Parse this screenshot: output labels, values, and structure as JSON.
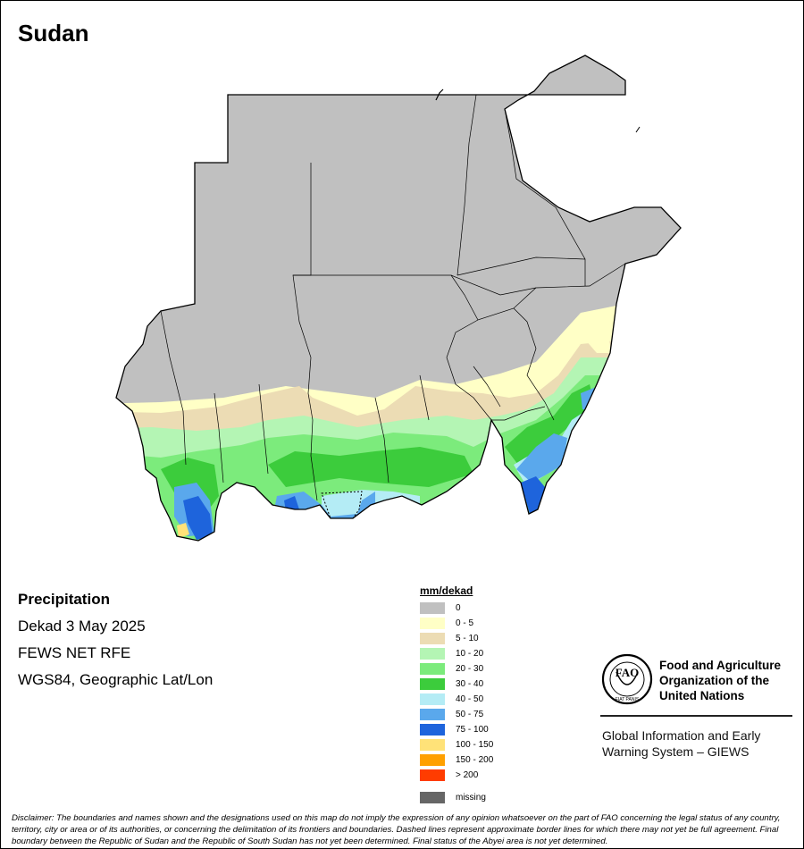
{
  "map": {
    "title": "Sudan",
    "colors": {
      "gray": "#c0c0c0",
      "c0_5": "#ffffc6",
      "c5_10": "#ecdcb4",
      "c10_20": "#b4f5b4",
      "c20_30": "#7ceb7c",
      "c30_40": "#3ccc3c",
      "c40_50": "#b4ecf5",
      "c50_75": "#5aa8ec",
      "c75_100": "#1e64dc",
      "c100_150": "#ffe278",
      "c150_200": "#ffa000",
      "c200": "#ff3c00",
      "missing": "#666666",
      "boundary": "#000000"
    }
  },
  "info": {
    "heading": "Precipitation",
    "dekad": "Dekad 3 May 2025",
    "source": "FEWS NET RFE",
    "projection": "WGS84, Geographic Lat/Lon"
  },
  "legend": {
    "title": "mm/dekad",
    "items": [
      {
        "label": "0",
        "color": "#c0c0c0"
      },
      {
        "label": "0 - 5",
        "color": "#ffffc6"
      },
      {
        "label": "5 - 10",
        "color": "#ecdcb4"
      },
      {
        "label": "10 - 20",
        "color": "#b4f5b4"
      },
      {
        "label": "20 - 30",
        "color": "#7ceb7c"
      },
      {
        "label": "30 - 40",
        "color": "#3ccc3c"
      },
      {
        "label": "40 - 50",
        "color": "#b4ecf5"
      },
      {
        "label": "50 - 75",
        "color": "#5aa8ec"
      },
      {
        "label": "75 - 100",
        "color": "#1e64dc"
      },
      {
        "label": "100 - 150",
        "color": "#ffe278"
      },
      {
        "label": "150 - 200",
        "color": "#ffa000"
      },
      {
        "label": "> 200",
        "color": "#ff3c00"
      }
    ],
    "missing_label": "missing",
    "missing_color": "#666666"
  },
  "logo": {
    "emblem_letters": "FAO",
    "motto": "FIAT PANIS",
    "org_line1": "Food and Agriculture",
    "org_line2": "Organization of the",
    "org_line3": "United Nations",
    "giews_line1": "Global Information and Early",
    "giews_line2": "Warning System – GIEWS"
  },
  "disclaimer": "Disclaimer: The boundaries and names shown and the designations used on this map do not imply the expression of any opinion whatsoever on the part of FAO concerning the legal status of any country, territory, city or area or of its authorities, or concerning the delimitation of its frontiers and boundaries. Dashed lines represent approximate border lines for which there may not yet be full agreement.  Final boundary between the Republic of Sudan and the Republic of South Sudan has not yet been determined. Final status of the Abyei area is not yet determined."
}
